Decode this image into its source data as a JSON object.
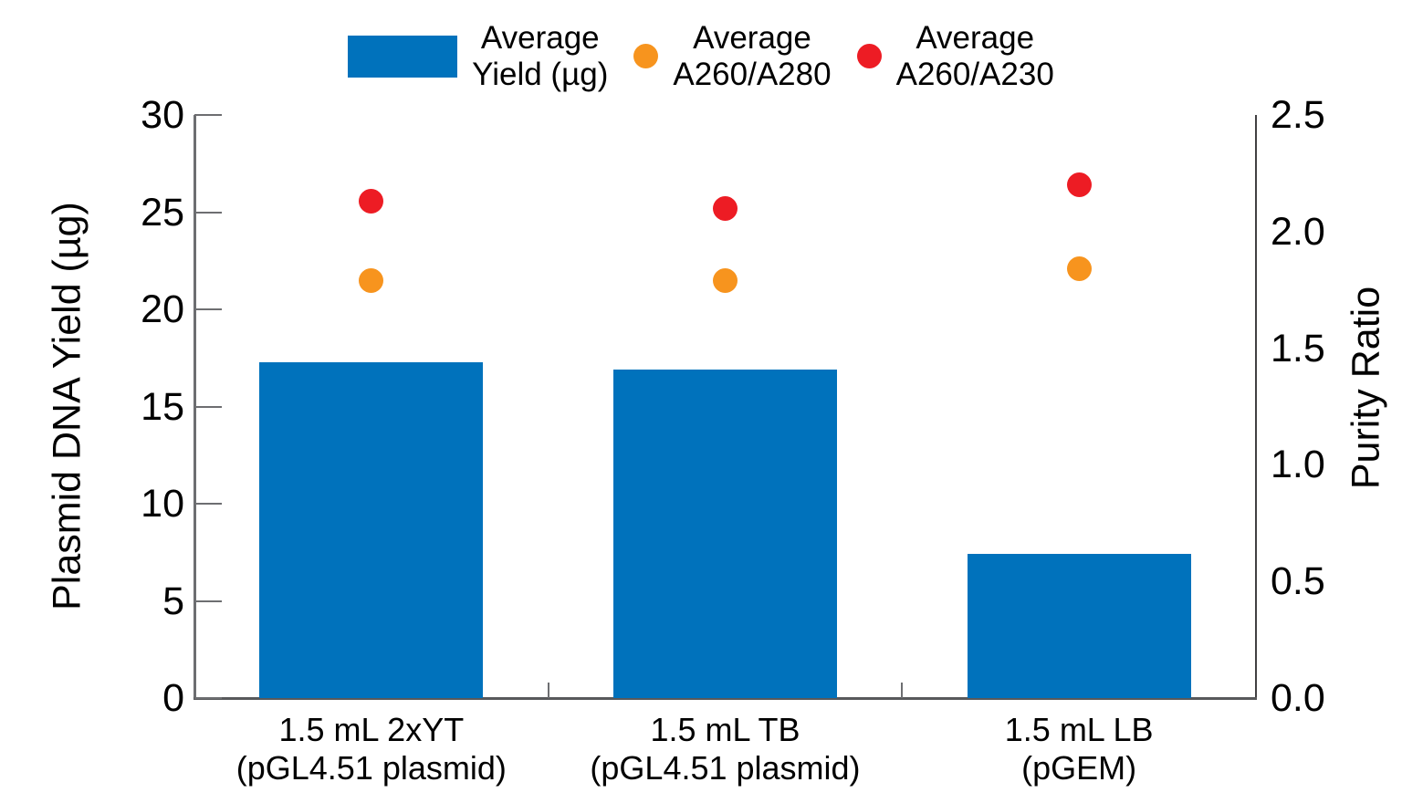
{
  "chart_data": {
    "type": "bar",
    "title": "",
    "categories": [
      "1.5 mL 2xYT\n(pGL4.51 plasmid)",
      "1.5 mL TB\n(pGL4.51 plasmid)",
      "1.5 mL LB\n(pGEM)"
    ],
    "series": [
      {
        "name": "Average\nYield (µg)",
        "kind": "bar",
        "axis": "left",
        "color": "#0072BC",
        "values": [
          17.3,
          16.9,
          7.4
        ]
      },
      {
        "name": "Average\nA260/A280",
        "kind": "point",
        "axis": "right",
        "color": "#F7941E",
        "values": [
          1.79,
          1.79,
          1.84
        ]
      },
      {
        "name": "Average\nA260/A230",
        "kind": "point",
        "axis": "right",
        "color": "#ED1C24",
        "values": [
          2.13,
          2.1,
          2.2
        ]
      }
    ],
    "left_axis": {
      "label": "Plasmid DNA Yield (µg)",
      "min": 0,
      "max": 30,
      "ticks": [
        "0",
        "5",
        "10",
        "15",
        "20",
        "25",
        "30"
      ]
    },
    "right_axis": {
      "label": "Purity Ratio",
      "min": 0,
      "max": 2.5,
      "ticks": [
        "0.0",
        "0.5",
        "1.0",
        "1.5",
        "2.0",
        "2.5"
      ]
    },
    "legend_position": "top",
    "grid": false
  }
}
